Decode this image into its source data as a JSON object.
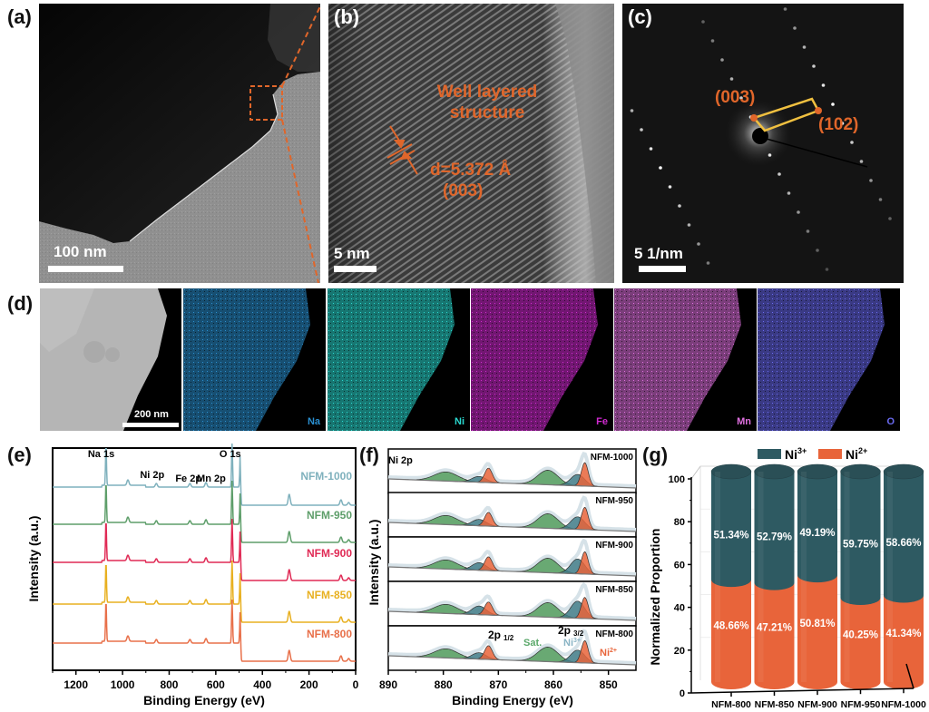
{
  "figure": {
    "panels": {
      "a": {
        "label": "(a)",
        "scalebar": "100 nm"
      },
      "b": {
        "label": "(b)",
        "scalebar": "5 nm",
        "title_line1": "Well layered",
        "title_line2": "structure",
        "d_spacing": "d=5.372 Å",
        "plane": "(003)"
      },
      "c": {
        "label": "(c)",
        "scalebar": "5 1/nm",
        "spot1": "(003)",
        "spot2": "(102)"
      },
      "d": {
        "label": "(d)",
        "scalebar": "200 nm",
        "maps": [
          {
            "element": "Na",
            "color": "#2a8fd0"
          },
          {
            "element": "Ni",
            "color": "#2ad8d0"
          },
          {
            "element": "Fe",
            "color": "#d02ad0"
          },
          {
            "element": "Mn",
            "color": "#e070e0"
          },
          {
            "element": "O",
            "color": "#6a6af0"
          }
        ]
      },
      "e": {
        "label": "(e)"
      },
      "f": {
        "label": "(f)"
      },
      "g": {
        "label": "(g)"
      }
    },
    "colors": {
      "accent_orange": "#e0662a",
      "ni3": "#2e5a62",
      "ni2": "#e8643a",
      "sat": "#4f9a5a"
    }
  },
  "chart_data": [
    {
      "id": "e",
      "type": "line",
      "title": "",
      "xlabel": "Binding Energy (eV)",
      "ylabel": "Intensity (a.u.)",
      "xlim": [
        1300,
        0
      ],
      "xticks": [
        1200,
        1000,
        800,
        600,
        400,
        200,
        0
      ],
      "peak_annotations": [
        {
          "text": "Na 1s",
          "x": 1071
        },
        {
          "text": "Ni 2p",
          "x": 855
        },
        {
          "text": "Fe 2p",
          "x": 711
        },
        {
          "text": "Mn 2p",
          "x": 642
        },
        {
          "text": "O 1s",
          "x": 530
        }
      ],
      "series": [
        {
          "name": "NFM-1000",
          "color": "#7fb1bd"
        },
        {
          "name": "NFM-950",
          "color": "#5e9e6a"
        },
        {
          "name": "NFM-900",
          "color": "#e02a55"
        },
        {
          "name": "NFM-850",
          "color": "#e8b020"
        },
        {
          "name": "NFM-800",
          "color": "#e8704a"
        }
      ],
      "peaks_eV": [
        1071,
        977,
        855,
        711,
        642,
        530,
        495,
        285,
        63,
        30
      ]
    },
    {
      "id": "f",
      "type": "area",
      "title": "Ni 2p",
      "xlabel": "Binding Energy (eV)",
      "ylabel": "Intensity (a.u.)",
      "xlim": [
        890,
        845
      ],
      "xticks": [
        890,
        880,
        870,
        860,
        850
      ],
      "annotations": {
        "p12": "2p",
        "p12_sub": "1/2",
        "p32": "2p",
        "p32_sub": "3/2",
        "sat": "Sat.",
        "ni3": "Ni",
        "ni3_sup": "3+",
        "ni2": "Ni",
        "ni2_sup": "2+"
      },
      "series": [
        {
          "name": "NFM-1000"
        },
        {
          "name": "NFM-950"
        },
        {
          "name": "NFM-900"
        },
        {
          "name": "NFM-850"
        },
        {
          "name": "NFM-800"
        }
      ],
      "components": [
        {
          "name": "Sat. 2p1/2",
          "center": 879.5,
          "color": "#4f9a5a"
        },
        {
          "name": "Ni3+ 2p1/2",
          "center": 873.5,
          "color": "#3e7a86"
        },
        {
          "name": "Ni2+ 2p1/2",
          "center": 871.8,
          "color": "#e8643a"
        },
        {
          "name": "Sat. 2p3/2",
          "center": 861,
          "color": "#4f9a5a"
        },
        {
          "name": "Ni3+ 2p3/2",
          "center": 855.6,
          "color": "#3e7a86"
        },
        {
          "name": "Ni2+ 2p3/2",
          "center": 854.3,
          "color": "#e8643a"
        }
      ]
    },
    {
      "id": "g",
      "type": "bar",
      "stacked": true,
      "title": "",
      "xlabel": "",
      "ylabel": "Normalized Proportion",
      "ylim": [
        0,
        100
      ],
      "yticks": [
        0,
        20,
        40,
        60,
        80,
        100
      ],
      "categories": [
        "NFM-800",
        "NFM-850",
        "NFM-900",
        "NFM-950",
        "NFM-1000"
      ],
      "legend": {
        "position": "top",
        "entries": [
          {
            "name": "Ni",
            "sup": "3+",
            "color": "#2e5a62"
          },
          {
            "name": "Ni",
            "sup": "2+",
            "color": "#e8643a"
          }
        ]
      },
      "series": [
        {
          "name": "Ni2+",
          "color": "#e8643a",
          "values": [
            48.66,
            47.21,
            50.81,
            40.25,
            41.34
          ],
          "labels": [
            "48.66%",
            "47.21%",
            "50.81%",
            "40.25%",
            "41.34%"
          ]
        },
        {
          "name": "Ni3+",
          "color": "#2e5a62",
          "values": [
            51.34,
            52.79,
            49.19,
            59.75,
            58.66
          ],
          "labels": [
            "51.34%",
            "52.79%",
            "49.19%",
            "59.75%",
            "58.66%"
          ]
        }
      ]
    }
  ]
}
